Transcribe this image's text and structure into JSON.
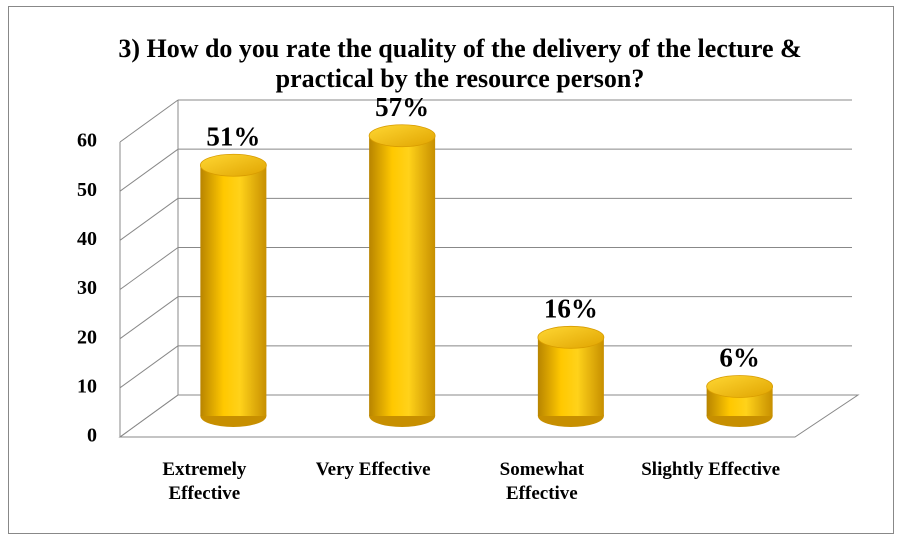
{
  "chart_data": {
    "type": "bar3d",
    "title": "3) How do you rate the quality of the delivery of the lecture & practical by the resource person?",
    "categories": [
      "Extremely Effective",
      "Very Effective",
      "Somewhat Effective",
      "Slightly Effective"
    ],
    "values": [
      51,
      57,
      16,
      6
    ],
    "value_labels": [
      "51%",
      "57%",
      "16%",
      "6%"
    ],
    "color": "#f5b800",
    "ylim": [
      0,
      60
    ],
    "yticks": [
      0,
      10,
      20,
      30,
      40,
      50,
      60
    ],
    "grid": true
  }
}
